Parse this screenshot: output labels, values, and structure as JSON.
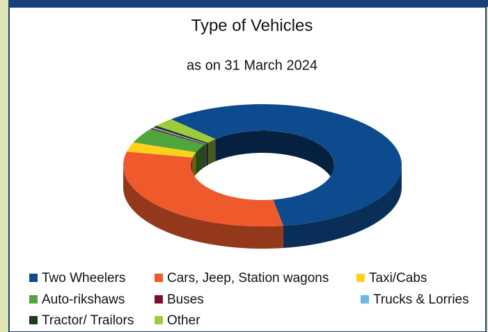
{
  "chart_data": {
    "type": "donut",
    "title": "Type of Vehicles",
    "subtitle": "as on 31 March 2024",
    "categories": [
      "Two Wheelers",
      "Cars, Jeep, Station wagons",
      "Taxi/Cabs",
      "Auto-rikshaws",
      "Buses",
      "Trucks & Lorries",
      "Tractor/ Trailors",
      "Other"
    ],
    "values": [
      59,
      31,
      2.5,
      4,
      0.3,
      0.3,
      0.5,
      2.4
    ],
    "colors": [
      "#0e4a8e",
      "#ee5a2b",
      "#fdd21c",
      "#4fa63c",
      "#7b0f2c",
      "#6db6e8",
      "#1f3b1b",
      "#9dcb3b"
    ]
  }
}
